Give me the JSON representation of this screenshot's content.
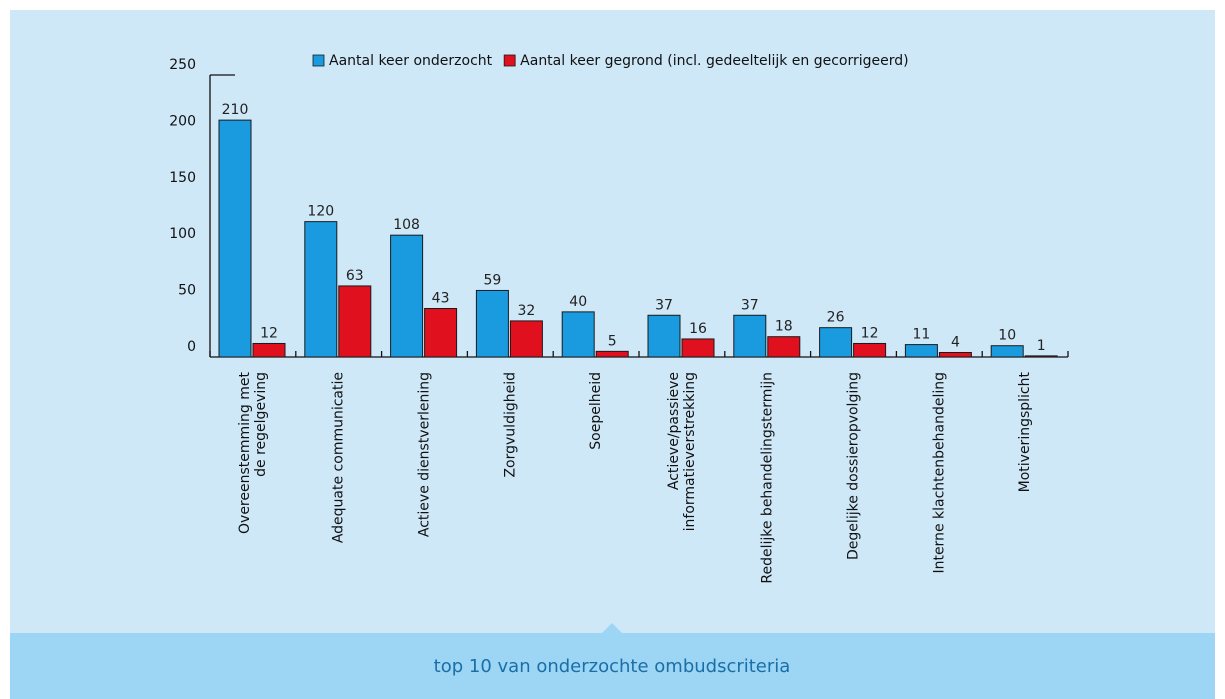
{
  "chart_data": {
    "type": "bar",
    "caption": "top 10 van onderzochte ombudscriteria",
    "categories": [
      "Overeenstemming met\nde regelgeving",
      "Adequate communicatie",
      "Actieve dienstverlening",
      "Zorgvuldigheid",
      "Soepelheid",
      "Actieve/passieve\ninformatieverstrekking",
      "Redelijke behandelingstermijn",
      "Degelijke dossieropvolging",
      "Interne klachtenbehandeling",
      "Motiveringsplicht"
    ],
    "series": [
      {
        "name": "Aantal keer onderzocht",
        "color": "#1a9be0",
        "values": [
          210,
          120,
          108,
          59,
          40,
          37,
          37,
          26,
          11,
          10
        ]
      },
      {
        "name": "Aantal keer gegrond (incl. gedeeltelijk en gecorrigeerd)",
        "color": "#e0101e",
        "values": [
          12,
          63,
          43,
          32,
          5,
          16,
          18,
          12,
          4,
          1
        ]
      }
    ],
    "ylim": [
      0,
      250
    ],
    "yticks": [
      0,
      50,
      100,
      150,
      200,
      250
    ]
  }
}
